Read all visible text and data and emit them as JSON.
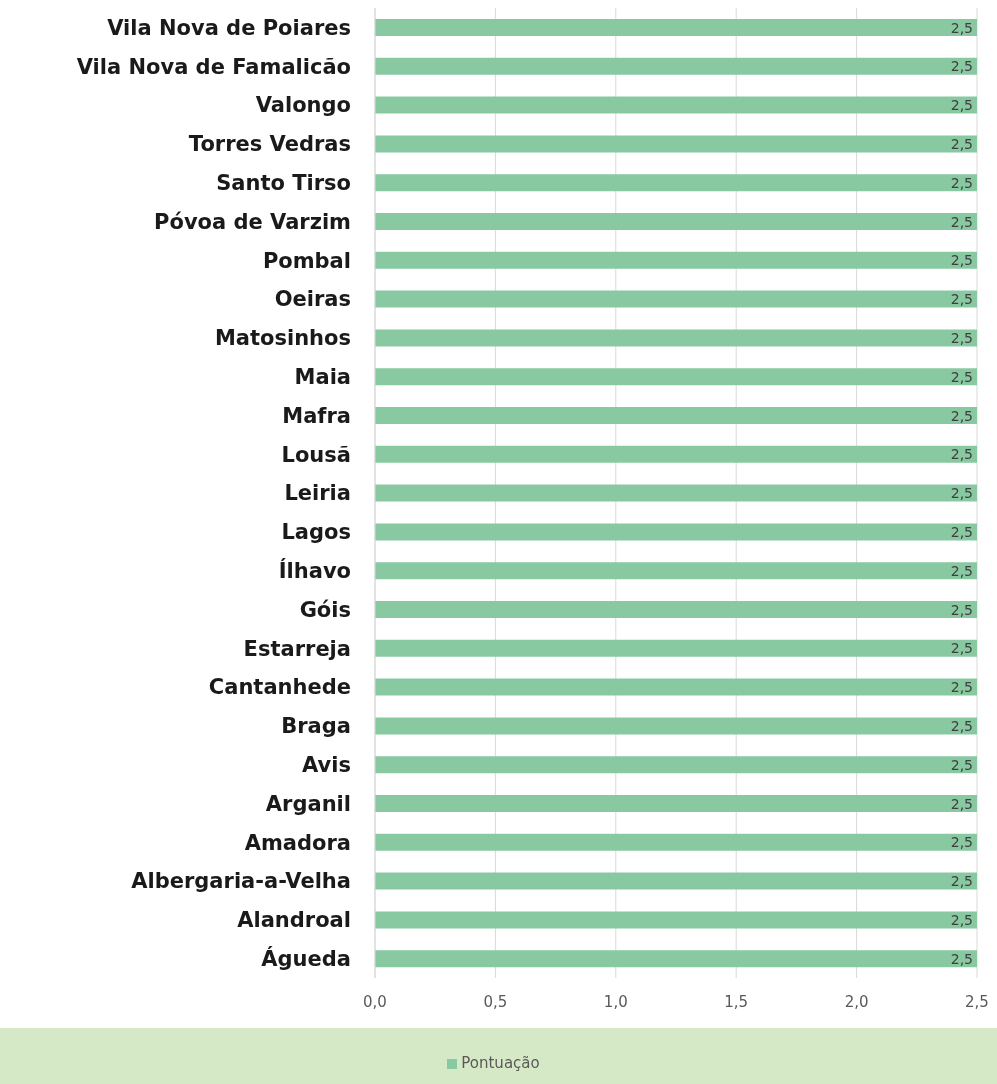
{
  "chart_data": {
    "type": "bar",
    "orientation": "horizontal",
    "categories": [
      "Vila Nova de Poiares",
      "Vila Nova de Famalicão",
      "Valongo",
      "Torres Vedras",
      "Santo Tirso",
      "Póvoa de Varzim",
      "Pombal",
      "Oeiras",
      "Matosinhos",
      "Maia",
      "Mafra",
      "Lousã",
      "Leiria",
      "Lagos",
      "Ílhavo",
      "Góis",
      "Estarreja",
      "Cantanhede",
      "Braga",
      "Avis",
      "Arganil",
      "Amadora",
      "Albergaria-a-Velha",
      "Alandroal",
      "Águeda"
    ],
    "series": [
      {
        "name": "Pontuação",
        "color": "#88c9a1",
        "values": [
          2.5,
          2.5,
          2.5,
          2.5,
          2.5,
          2.5,
          2.5,
          2.5,
          2.5,
          2.5,
          2.5,
          2.5,
          2.5,
          2.5,
          2.5,
          2.5,
          2.5,
          2.5,
          2.5,
          2.5,
          2.5,
          2.5,
          2.5,
          2.5,
          2.5
        ],
        "value_labels": [
          "2,5",
          "2,5",
          "2,5",
          "2,5",
          "2,5",
          "2,5",
          "2,5",
          "2,5",
          "2,5",
          "2,5",
          "2,5",
          "2,5",
          "2,5",
          "2,5",
          "2,5",
          "2,5",
          "2,5",
          "2,5",
          "2,5",
          "2,5",
          "2,5",
          "2,5",
          "2,5",
          "2,5",
          "2,5"
        ]
      }
    ],
    "xlim": [
      0,
      2.5
    ],
    "xticks": [
      {
        "value": 0,
        "label": "0,0"
      },
      {
        "value": 0.5,
        "label": "0,5"
      },
      {
        "value": 1,
        "label": "1,0"
      },
      {
        "value": 1.5,
        "label": "1,5"
      },
      {
        "value": 2,
        "label": "2,0"
      },
      {
        "value": 2.5,
        "label": "2,5"
      }
    ],
    "grid": "x",
    "legend": "bottom"
  }
}
